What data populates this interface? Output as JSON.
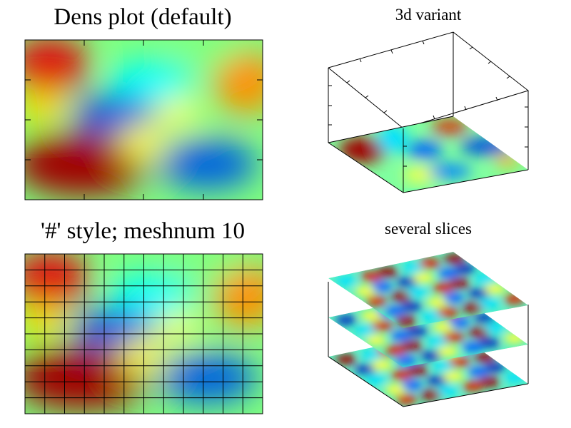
{
  "panels": [
    {
      "title": "Dens plot (default)",
      "style": "default",
      "type": "dens2d"
    },
    {
      "title": "3d variant",
      "style": "3d",
      "type": "dens3d"
    },
    {
      "title": "'#' style; meshnum 10",
      "style": "#",
      "meshnum": 10,
      "type": "dens2d"
    },
    {
      "title": "several slices",
      "style": "slices",
      "slices": 3,
      "type": "dens3d"
    }
  ],
  "chart_data": [
    {
      "type": "heatmap",
      "title": "Dens plot (default)",
      "colormap": "jet",
      "grid": false
    },
    {
      "type": "heatmap",
      "title": "3d variant",
      "colormap": "jet",
      "projection": "3d",
      "box": true
    },
    {
      "type": "heatmap",
      "title": "'#' style; meshnum 10",
      "colormap": "jet",
      "grid": true,
      "meshnum": 10
    },
    {
      "type": "heatmap",
      "title": "several slices",
      "colormap": "jet",
      "projection": "3d",
      "slices": 3,
      "box": true
    }
  ],
  "colors": {
    "low": "#000080",
    "mid": "#00ffff",
    "high": "#800000"
  }
}
